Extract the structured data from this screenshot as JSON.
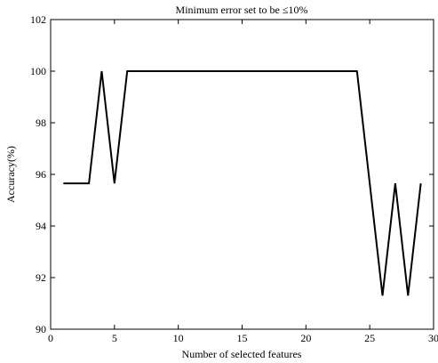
{
  "chart_data": {
    "type": "line",
    "title": "Minimum error set to be ≤10%",
    "x_label": "Number of selected features",
    "y_label": "Accuracy(%)",
    "x": [
      1,
      2,
      3,
      4,
      5,
      6,
      7,
      8,
      9,
      10,
      11,
      12,
      13,
      14,
      15,
      16,
      17,
      18,
      19,
      20,
      21,
      22,
      23,
      24,
      25,
      26,
      27,
      28,
      29
    ],
    "series": [
      {
        "color": "#000000",
        "values": [
          95.65,
          95.65,
          95.65,
          100,
          95.65,
          100,
          100,
          100,
          100,
          100,
          100,
          100,
          100,
          100,
          100,
          100,
          100,
          100,
          100,
          100,
          100,
          100,
          100,
          100,
          95.65,
          91.3,
          95.65,
          91.3,
          95.65
        ]
      }
    ],
    "xlim": [
      0,
      30
    ],
    "xticks": [
      0,
      5,
      10,
      15,
      20,
      25,
      30
    ],
    "ylim": [
      90,
      102
    ],
    "yticks": [
      90,
      92,
      94,
      96,
      98,
      100,
      102
    ]
  }
}
